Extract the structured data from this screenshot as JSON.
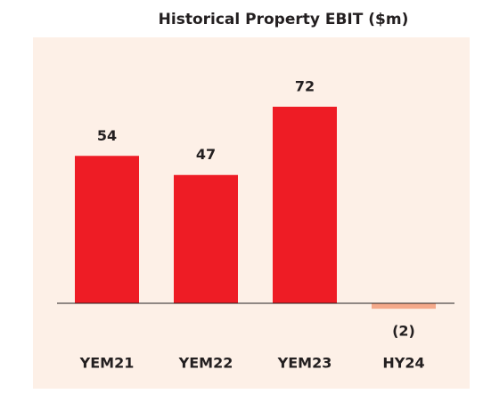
{
  "chart_data": {
    "type": "bar",
    "title": "Historical Property EBIT ($m)",
    "categories": [
      "YEM21",
      "YEM22",
      "YEM23",
      "HY24"
    ],
    "values": [
      54,
      47,
      72,
      -2
    ],
    "value_labels": [
      "54",
      "47",
      "72",
      "(2)"
    ],
    "colors": [
      "#ee1c25",
      "#ee1c25",
      "#ee1c25",
      "#f4a98a"
    ]
  }
}
